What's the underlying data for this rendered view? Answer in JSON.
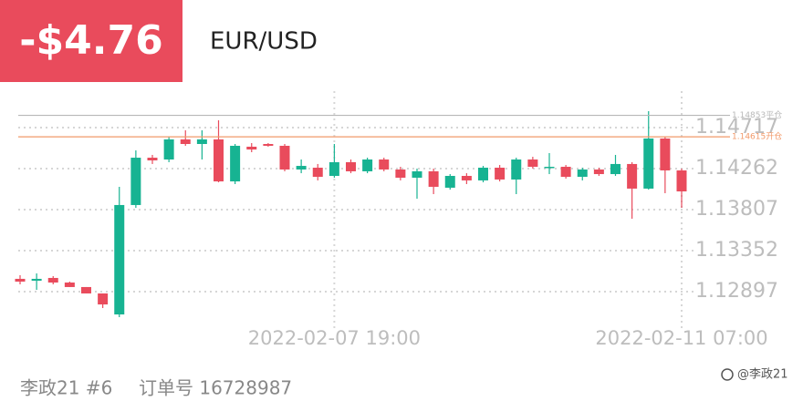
{
  "header": {
    "pnl": "-$4.76",
    "symbol": "EUR/USD"
  },
  "chart_data": {
    "type": "candlestick",
    "categories": [
      null,
      null,
      null,
      null,
      null,
      null,
      null,
      null,
      null,
      null,
      null,
      null,
      null,
      null,
      null,
      null,
      null,
      null,
      null,
      "2022-02-07 19:00",
      null,
      null,
      null,
      null,
      null,
      null,
      null,
      null,
      null,
      null,
      null,
      null,
      null,
      null,
      null,
      null,
      null,
      null,
      null,
      null,
      "2022-02-11 07:00"
    ],
    "open": [
      1.13039,
      1.13018,
      1.13049,
      1.12998,
      1.12948,
      1.12877,
      1.12644,
      1.13858,
      1.14383,
      1.14363,
      1.14586,
      1.14535,
      1.14586,
      1.1412,
      1.14505,
      1.14535,
      1.14515,
      1.14252,
      1.14272,
      1.14181,
      1.14333,
      1.14232,
      1.14363,
      1.14252,
      1.14161,
      1.14232,
      1.1405,
      1.14181,
      1.14131,
      1.14272,
      1.14141,
      1.14363,
      1.14272,
      1.14282,
      1.14171,
      1.14252,
      1.14201,
      1.14313,
      1.1404,
      1.14596,
      1.14242
    ],
    "high": [
      1.13079,
      1.13099,
      1.13069,
      1.13008,
      1.12948,
      1.12877,
      1.1406,
      1.14464,
      1.14414,
      1.14616,
      1.14687,
      1.14687,
      1.14798,
      1.14535,
      1.14545,
      1.14545,
      1.14535,
      1.14363,
      1.14313,
      1.14535,
      1.14363,
      1.14383,
      1.14383,
      1.14282,
      1.14262,
      1.14262,
      1.14201,
      1.14211,
      1.14292,
      1.14302,
      1.14383,
      1.14393,
      1.14434,
      1.14302,
      1.14272,
      1.14272,
      1.14414,
      1.14333,
      1.14899,
      1.14616,
      1.14262
    ],
    "low": [
      1.12978,
      1.12917,
      1.12978,
      1.12948,
      1.12877,
      1.12715,
      1.12614,
      1.13827,
      1.14313,
      1.14333,
      1.14515,
      1.14363,
      1.1411,
      1.1409,
      1.14444,
      1.14505,
      1.14232,
      1.14211,
      1.14131,
      1.14161,
      1.14211,
      1.14211,
      1.14232,
      1.14131,
      1.13928,
      1.13979,
      1.14029,
      1.1409,
      1.1411,
      1.1412,
      1.13979,
      1.14262,
      1.14201,
      1.14151,
      1.14131,
      1.14181,
      1.14181,
      1.13706,
      1.14029,
      1.13989,
      1.13827
    ],
    "close": [
      1.13008,
      1.13039,
      1.12998,
      1.12948,
      1.12877,
      1.12755,
      1.13858,
      1.14383,
      1.14353,
      1.14586,
      1.14535,
      1.14586,
      1.1412,
      1.14515,
      1.14474,
      1.14515,
      1.14252,
      1.14292,
      1.14171,
      1.14333,
      1.14232,
      1.14363,
      1.14252,
      1.14161,
      1.14232,
      1.1406,
      1.14181,
      1.14131,
      1.14272,
      1.14141,
      1.14363,
      1.14282,
      1.14282,
      1.14171,
      1.14252,
      1.14201,
      1.14313,
      1.1404,
      1.14596,
      1.14242,
      1.14009
    ],
    "up_color": "#17b392",
    "down_color": "#e94b5c",
    "ylim": [
      1.12442,
      1.15172
    ],
    "yticks": [
      1.12897,
      1.13352,
      1.13807,
      1.14262,
      1.14717
    ],
    "grid": true,
    "reference_lines": [
      {
        "value": 1.14853,
        "label": "1.14853平仓",
        "color": "#b8b8b8"
      },
      {
        "value": 1.14615,
        "label": "1.14615开仓",
        "color": "#f29a6a"
      }
    ]
  },
  "footer": {
    "account": "李政21 #6",
    "order": "订单号 16728987",
    "watermark": "@李政21"
  }
}
